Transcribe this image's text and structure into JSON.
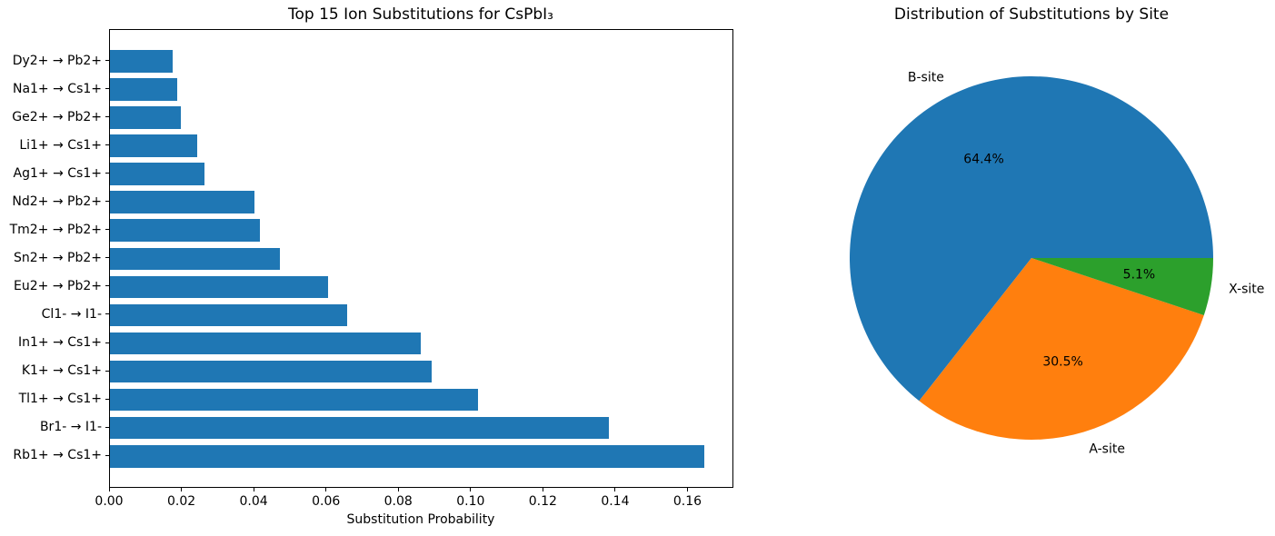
{
  "figure": {
    "background": "#ffffff",
    "text_color": "#000000"
  },
  "chart_data": [
    {
      "type": "bar",
      "orientation": "horizontal",
      "title": "Top 15 Ion Substitutions for CsPbI₃",
      "xlabel": "Substitution Probability",
      "ylabel": "",
      "categories": [
        "Dy2+ → Pb2+",
        "Na1+ → Cs1+",
        "Ge2+ → Pb2+",
        "Li1+ → Cs1+",
        "Ag1+ → Cs1+",
        "Nd2+ → Pb2+",
        "Tm2+ → Pb2+",
        "Sn2+ → Pb2+",
        "Eu2+ → Pb2+",
        "Cl1- → I1-",
        "In1+ → Cs1+",
        "K1+ → Cs1+",
        "Tl1+ → Cs1+",
        "Br1- → I1-",
        "Rb1+ → Cs1+"
      ],
      "values": [
        0.0173,
        0.0185,
        0.0195,
        0.0241,
        0.0261,
        0.0399,
        0.0414,
        0.047,
        0.0603,
        0.0655,
        0.0859,
        0.0889,
        0.1018,
        0.138,
        0.1645
      ],
      "xlim": [
        0,
        0.1727
      ],
      "xticks": [
        0,
        0.02,
        0.04,
        0.06,
        0.08,
        0.1,
        0.12,
        0.14,
        0.16
      ],
      "xtick_labels": [
        "0.00",
        "0.02",
        "0.04",
        "0.06",
        "0.08",
        "0.10",
        "0.12",
        "0.14",
        "0.16"
      ],
      "bar_color": "#1f77b4",
      "grid": false,
      "legend": null
    },
    {
      "type": "pie",
      "title": "Distribution of Substitutions by Site",
      "labels": [
        "B-site",
        "A-site",
        "X-site"
      ],
      "values": [
        64.4,
        30.5,
        5.1
      ],
      "pct_labels": [
        "64.4%",
        "30.5%",
        "5.1%"
      ],
      "colors": [
        "#1f77b4",
        "#ff7f0e",
        "#2ca02c"
      ],
      "start_angle_deg": 0,
      "direction": "counterclockwise",
      "label_distance": 1.1,
      "pct_distance": 0.6,
      "legend": null
    }
  ]
}
